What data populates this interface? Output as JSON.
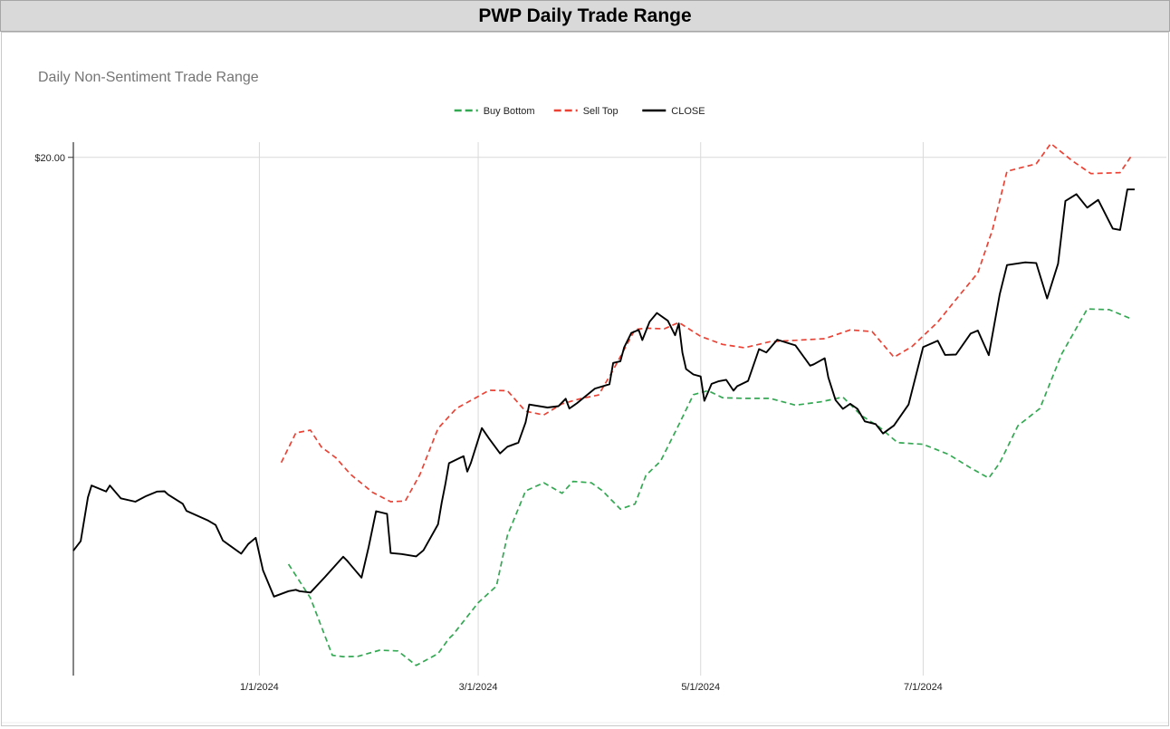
{
  "header": {
    "title": "PWP Daily Trade Range"
  },
  "chart_data": {
    "type": "line",
    "title": "Daily Non-Sentiment Trade Range",
    "xlabel": "",
    "ylabel": "",
    "x_tick_labels": [
      "1/1/2024",
      "3/1/2024",
      "5/1/2024",
      "7/1/2024"
    ],
    "x_ticks": [
      "2024-01-01",
      "2024-03-01",
      "2024-05-01",
      "2024-07-01"
    ],
    "x_range": [
      "2023-11-11",
      "2024-08-28"
    ],
    "y_tick_labels": [
      "$20.00"
    ],
    "y_ticks": [
      20
    ],
    "ylim": [
      4.65,
      20.45
    ],
    "grid": true,
    "legend_position": "top-center",
    "series": [
      {
        "name": "Buy Bottom",
        "color": "#34a853",
        "dash": true,
        "x": [
          "2024-01-09",
          "2024-01-15",
          "2024-01-21",
          "2024-01-24",
          "2024-01-28",
          "2024-02-03",
          "2024-02-08",
          "2024-02-13",
          "2024-02-19",
          "2024-02-22",
          "2024-02-23",
          "2024-03-01",
          "2024-03-06",
          "2024-03-09",
          "2024-03-14",
          "2024-03-19",
          "2024-03-24",
          "2024-03-27",
          "2024-04-01",
          "2024-04-04",
          "2024-04-09",
          "2024-04-13",
          "2024-04-16",
          "2024-04-20",
          "2024-04-25",
          "2024-04-29",
          "2024-05-03",
          "2024-05-07",
          "2024-05-13",
          "2024-05-20",
          "2024-05-27",
          "2024-06-03",
          "2024-06-09",
          "2024-06-14",
          "2024-06-19",
          "2024-06-24",
          "2024-07-01",
          "2024-07-08",
          "2024-07-14",
          "2024-07-19",
          "2024-07-22",
          "2024-07-27",
          "2024-08-02",
          "2024-08-08",
          "2024-08-15",
          "2024-08-21",
          "2024-08-27"
        ],
        "y": [
          7.95,
          6.95,
          5.25,
          5.21,
          5.22,
          5.4,
          5.38,
          4.95,
          5.3,
          5.75,
          5.85,
          6.81,
          7.3,
          8.8,
          10.12,
          10.36,
          10.05,
          10.4,
          10.36,
          10.13,
          9.58,
          9.73,
          10.58,
          11.0,
          12.08,
          12.97,
          13.09,
          12.88,
          12.86,
          12.86,
          12.66,
          12.76,
          12.9,
          12.36,
          12.01,
          11.55,
          11.5,
          11.2,
          10.8,
          10.5,
          10.95,
          12.05,
          12.56,
          14.18,
          15.51,
          15.49,
          15.22
        ]
      },
      {
        "name": "Sell Top",
        "color": "#ea4335",
        "dash": true,
        "x": [
          "2024-01-07",
          "2024-01-11",
          "2024-01-15",
          "2024-01-18",
          "2024-01-22",
          "2024-01-26",
          "2024-02-01",
          "2024-02-06",
          "2024-02-10",
          "2024-02-14",
          "2024-02-19",
          "2024-02-24",
          "2024-03-01",
          "2024-03-04",
          "2024-03-09",
          "2024-03-14",
          "2024-03-19",
          "2024-03-24",
          "2024-03-29",
          "2024-04-03",
          "2024-04-07",
          "2024-04-13",
          "2024-04-16",
          "2024-04-21",
          "2024-04-25",
          "2024-05-01",
          "2024-05-07",
          "2024-05-13",
          "2024-05-20",
          "2024-05-27",
          "2024-06-04",
          "2024-06-11",
          "2024-06-17",
          "2024-06-23",
          "2024-06-28",
          "2024-07-05",
          "2024-07-10",
          "2024-07-16",
          "2024-07-20",
          "2024-07-24",
          "2024-08-01",
          "2024-08-05",
          "2024-08-11",
          "2024-08-16",
          "2024-08-24",
          "2024-08-27"
        ],
        "y": [
          10.96,
          11.84,
          11.92,
          11.42,
          11.1,
          10.61,
          10.08,
          9.8,
          9.82,
          10.6,
          11.97,
          12.56,
          12.92,
          13.1,
          13.09,
          12.48,
          12.37,
          12.7,
          12.85,
          12.96,
          13.7,
          14.9,
          14.94,
          14.92,
          15.11,
          14.7,
          14.46,
          14.36,
          14.54,
          14.58,
          14.63,
          14.89,
          14.84,
          14.08,
          14.4,
          15.12,
          15.79,
          16.58,
          17.85,
          19.59,
          19.81,
          20.41,
          19.89,
          19.52,
          19.55,
          20.03
        ]
      },
      {
        "name": "CLOSE",
        "color": "#000000",
        "dash": false,
        "x": [
          "2023-11-11",
          "2023-11-13",
          "2023-11-15",
          "2023-11-16",
          "2023-11-20",
          "2023-11-21",
          "2023-11-24",
          "2023-11-28",
          "2023-12-01",
          "2023-12-04",
          "2023-12-06",
          "2023-12-07",
          "2023-12-11",
          "2023-12-12",
          "2023-12-18",
          "2023-12-20",
          "2023-12-22",
          "2023-12-27",
          "2023-12-29",
          "2023-12-31",
          "2024-01-02",
          "2024-01-05",
          "2024-01-08",
          "2024-01-09",
          "2024-01-11",
          "2024-01-12",
          "2024-01-15",
          "2024-01-19",
          "2024-01-24",
          "2024-01-25",
          "2024-01-26",
          "2024-01-29",
          "2024-01-31",
          "2024-02-02",
          "2024-02-05",
          "2024-02-06",
          "2024-02-09",
          "2024-02-13",
          "2024-02-15",
          "2024-02-19",
          "2024-02-20",
          "2024-02-21",
          "2024-02-22",
          "2024-02-26",
          "2024-02-27",
          "2024-02-28",
          "2024-03-02",
          "2024-03-04",
          "2024-03-07",
          "2024-03-09",
          "2024-03-12",
          "2024-03-14",
          "2024-03-15",
          "2024-03-20",
          "2024-03-23",
          "2024-03-25",
          "2024-03-26",
          "2024-03-28",
          "2024-04-02",
          "2024-04-06",
          "2024-04-07",
          "2024-04-09",
          "2024-04-10",
          "2024-04-12",
          "2024-04-14",
          "2024-04-15",
          "2024-04-17",
          "2024-04-19",
          "2024-04-22",
          "2024-04-24",
          "2024-04-25",
          "2024-04-26",
          "2024-04-27",
          "2024-04-29",
          "2024-05-01",
          "2024-05-02",
          "2024-05-04",
          "2024-05-06",
          "2024-05-08",
          "2024-05-10",
          "2024-05-11",
          "2024-05-14",
          "2024-05-17",
          "2024-05-19",
          "2024-05-22",
          "2024-05-27",
          "2024-05-31",
          "2024-06-01",
          "2024-06-04",
          "2024-06-05",
          "2024-06-07",
          "2024-06-09",
          "2024-06-11",
          "2024-06-13",
          "2024-06-15",
          "2024-06-18",
          "2024-06-20",
          "2024-06-23",
          "2024-06-27",
          "2024-07-01",
          "2024-07-05",
          "2024-07-07",
          "2024-07-10",
          "2024-07-14",
          "2024-07-16",
          "2024-07-19",
          "2024-07-22",
          "2024-07-24",
          "2024-07-29",
          "2024-08-01",
          "2024-08-04",
          "2024-08-07",
          "2024-08-09",
          "2024-08-12",
          "2024-08-15",
          "2024-08-18",
          "2024-08-22",
          "2024-08-24",
          "2024-08-26",
          "2024-08-28"
        ],
        "y": [
          8.35,
          8.63,
          9.93,
          10.28,
          10.1,
          10.28,
          9.9,
          9.8,
          9.97,
          10.1,
          10.11,
          10.01,
          9.74,
          9.53,
          9.24,
          9.11,
          8.65,
          8.26,
          8.55,
          8.73,
          7.77,
          6.99,
          7.11,
          7.15,
          7.19,
          7.15,
          7.11,
          7.57,
          8.17,
          8.06,
          7.93,
          7.55,
          8.47,
          9.52,
          9.44,
          8.28,
          8.25,
          8.18,
          8.36,
          9.13,
          9.78,
          10.32,
          10.94,
          11.15,
          10.69,
          10.95,
          11.98,
          11.67,
          11.23,
          11.43,
          11.55,
          12.15,
          12.68,
          12.59,
          12.63,
          12.85,
          12.56,
          12.71,
          13.15,
          13.28,
          13.91,
          13.96,
          14.37,
          14.8,
          14.89,
          14.59,
          15.13,
          15.39,
          15.16,
          14.73,
          15.08,
          14.21,
          13.73,
          13.57,
          13.51,
          12.79,
          13.29,
          13.37,
          13.41,
          13.09,
          13.22,
          13.38,
          14.32,
          14.22,
          14.6,
          14.43,
          13.83,
          13.87,
          14.05,
          13.48,
          12.81,
          12.55,
          12.7,
          12.55,
          12.18,
          12.1,
          11.82,
          12.06,
          12.68,
          14.38,
          14.57,
          14.15,
          14.16,
          14.78,
          14.87,
          14.14,
          15.95,
          16.81,
          16.89,
          16.87,
          15.82,
          16.85,
          18.71,
          18.91,
          18.51,
          18.74,
          17.89,
          17.85,
          19.05,
          19.05
        ]
      }
    ]
  }
}
